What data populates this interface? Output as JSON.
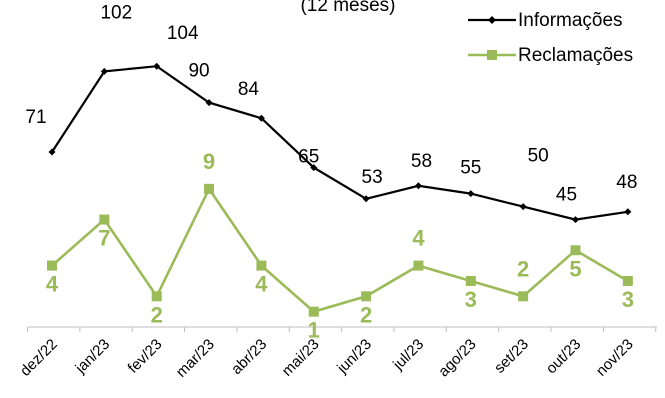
{
  "chart_data": {
    "type": "line",
    "title": "(12 meses)",
    "categories": [
      "dez/22",
      "jan/23",
      "fev/23",
      "mar/23",
      "abr/23",
      "mai/23",
      "jun/23",
      "jul/23",
      "ago/23",
      "set/23",
      "out/23",
      "nov/23"
    ],
    "series": [
      {
        "name": "Informações",
        "color": "#000000",
        "marker": "diamond",
        "values": [
          71,
          102,
          104,
          90,
          84,
          65,
          53,
          58,
          55,
          50,
          45,
          48
        ]
      },
      {
        "name": "Reclamações",
        "color": "#9BBB59",
        "marker": "square",
        "values": [
          4,
          7,
          2,
          9,
          4,
          1,
          2,
          4,
          3,
          2,
          5,
          3
        ]
      }
    ],
    "legend": "top-right",
    "grid": false
  }
}
